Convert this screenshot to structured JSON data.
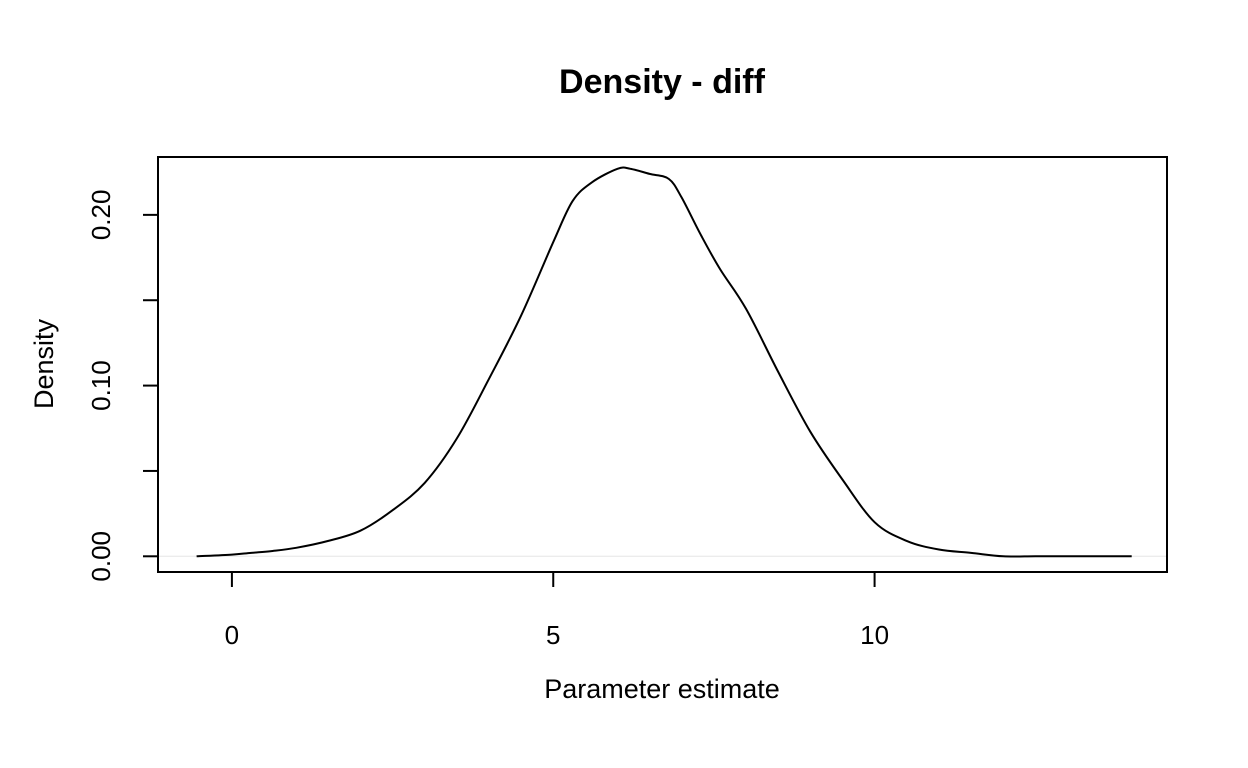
{
  "chart_data": {
    "type": "line",
    "title": "Density - diff",
    "xlabel": "Parameter estimate",
    "ylabel": "Density",
    "xlim": [
      -1.15,
      14.55
    ],
    "ylim": [
      -0.0092,
      0.2339
    ],
    "x_ticks": [
      0,
      5,
      10
    ],
    "x_tick_labels": [
      "0",
      "5",
      "10"
    ],
    "y_ticks": [
      0.0,
      0.05,
      0.1,
      0.15,
      0.2
    ],
    "y_tick_labels": [
      "0.00",
      "",
      "0.10",
      "",
      "0.20"
    ],
    "grid": false,
    "legend": "none",
    "line_color": "#000000",
    "baseline_color": "#e6e6e6",
    "series": [
      {
        "x": [
          -0.55,
          0.0,
          0.3,
          0.6,
          1.0,
          1.5,
          2.0,
          2.5,
          3.0,
          3.5,
          4.0,
          4.5,
          5.0,
          5.3,
          5.6,
          6.0,
          6.2,
          6.5,
          6.8,
          7.0,
          7.3,
          7.6,
          8.0,
          8.5,
          9.0,
          9.5,
          10.0,
          10.5,
          11.0,
          11.5,
          12.0,
          12.5,
          13.0,
          13.5,
          14.0
        ],
        "values": [
          0.0,
          0.001,
          0.002,
          0.003,
          0.005,
          0.009,
          0.015,
          0.027,
          0.043,
          0.069,
          0.104,
          0.141,
          0.184,
          0.208,
          0.219,
          0.227,
          0.227,
          0.224,
          0.221,
          0.21,
          0.188,
          0.168,
          0.145,
          0.108,
          0.073,
          0.045,
          0.02,
          0.009,
          0.004,
          0.002,
          0.0,
          0.0,
          0.0,
          0.0,
          0.0
        ]
      }
    ]
  }
}
